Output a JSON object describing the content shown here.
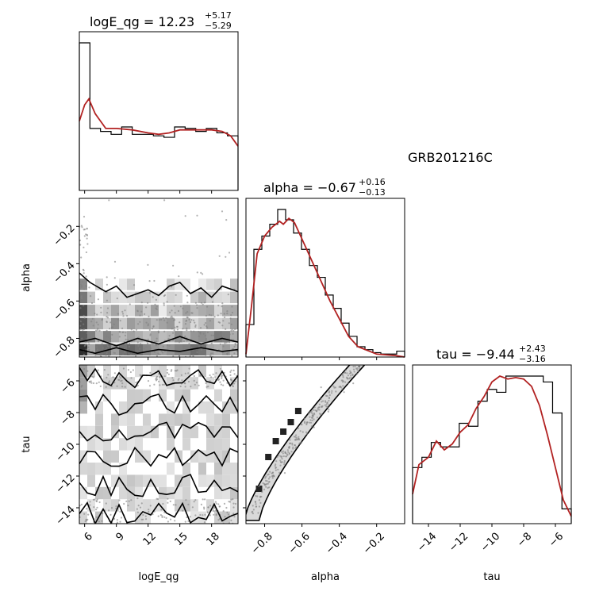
{
  "chart_data": {
    "type": "corner",
    "label": "GRB201216C",
    "colors": {
      "hist": "#000000",
      "kde": "#b22222",
      "points": "#808080"
    },
    "parameters": [
      {
        "name": "logE_qg",
        "median": "12.23",
        "upper": "+5.17",
        "lower": "−5.29",
        "range": [
          5.5,
          20.5
        ],
        "ticks": [
          "6",
          "9",
          "12",
          "15",
          "18"
        ],
        "tick_values": [
          6,
          9,
          12,
          15,
          18
        ]
      },
      {
        "name": "alpha",
        "median": "−0.67",
        "upper": "+0.16",
        "lower": "−0.13",
        "range": [
          -0.9,
          -0.05
        ],
        "ticks": [
          "−0.8",
          "−0.6",
          "−0.4",
          "−0.2"
        ],
        "tick_values": [
          -0.8,
          -0.6,
          -0.4,
          -0.2
        ]
      },
      {
        "name": "tau",
        "median": "−9.44",
        "upper": "+2.43",
        "lower": "−3.16",
        "range": [
          -15,
          -5
        ],
        "ticks": [
          "−14",
          "−12",
          "−10",
          "−8",
          "−6"
        ],
        "tick_values": [
          -14,
          -12,
          -10,
          -8,
          -6
        ]
      }
    ],
    "marginals": [
      {
        "parameter": "logE_qg",
        "hist": [
          1.0,
          0.42,
          0.4,
          0.38,
          0.43,
          0.38,
          0.38,
          0.37,
          0.36,
          0.43,
          0.42,
          0.4,
          0.42,
          0.39,
          0.37
        ],
        "kde_x": [
          5.5,
          6.0,
          6.4,
          7.0,
          8.0,
          9.0,
          10.5,
          12.0,
          13.0,
          14.0,
          15.0,
          16.0,
          17.0,
          18.0,
          19.0,
          19.8,
          20.5
        ],
        "kde_y": [
          0.47,
          0.58,
          0.62,
          0.52,
          0.42,
          0.42,
          0.41,
          0.39,
          0.38,
          0.39,
          0.41,
          0.41,
          0.41,
          0.41,
          0.4,
          0.37,
          0.3
        ]
      },
      {
        "parameter": "alpha",
        "hist": [
          0.22,
          0.73,
          0.82,
          0.9,
          1.0,
          0.93,
          0.84,
          0.73,
          0.62,
          0.54,
          0.42,
          0.33,
          0.23,
          0.14,
          0.07,
          0.05,
          0.03,
          0.02,
          0.02,
          0.04
        ],
        "kde_x": [
          -0.9,
          -0.87,
          -0.84,
          -0.8,
          -0.76,
          -0.72,
          -0.7,
          -0.67,
          -0.64,
          -0.6,
          -0.55,
          -0.5,
          -0.45,
          -0.4,
          -0.35,
          -0.3,
          -0.2,
          -0.1,
          -0.05
        ],
        "kde_y": [
          0.02,
          0.35,
          0.7,
          0.82,
          0.88,
          0.92,
          0.9,
          0.94,
          0.91,
          0.8,
          0.66,
          0.52,
          0.38,
          0.26,
          0.14,
          0.07,
          0.02,
          0.01,
          0.0
        ]
      },
      {
        "parameter": "tau",
        "hist": [
          0.38,
          0.45,
          0.55,
          0.52,
          0.52,
          0.68,
          0.66,
          0.83,
          0.91,
          0.89,
          1.0,
          1.0,
          1.0,
          1.0,
          0.96,
          0.75,
          0.1
        ],
        "kde_x": [
          -15,
          -14.6,
          -14.0,
          -13.5,
          -13.0,
          -12.5,
          -12.0,
          -11.5,
          -11.0,
          -10.5,
          -10.0,
          -9.5,
          -9.0,
          -8.5,
          -8.0,
          -7.5,
          -7.0,
          -6.5,
          -6.0,
          -5.5,
          -5.0
        ],
        "kde_y": [
          0.2,
          0.4,
          0.45,
          0.56,
          0.5,
          0.54,
          0.62,
          0.67,
          0.78,
          0.86,
          0.96,
          1.0,
          0.98,
          0.99,
          0.98,
          0.93,
          0.8,
          0.6,
          0.38,
          0.16,
          0.05
        ]
      }
    ],
    "joint": [
      {
        "x": "logE_qg",
        "y": "alpha",
        "description_points": "uniform in logE_qg, concentrated at alpha between -0.9 and -0.45"
      },
      {
        "x": "logE_qg",
        "y": "tau",
        "description_points": "uniform in both"
      },
      {
        "x": "alpha",
        "y": "tau",
        "description_points": "curved band from (-0.8,-14.5) to (-0.3,-5.5)"
      }
    ]
  }
}
